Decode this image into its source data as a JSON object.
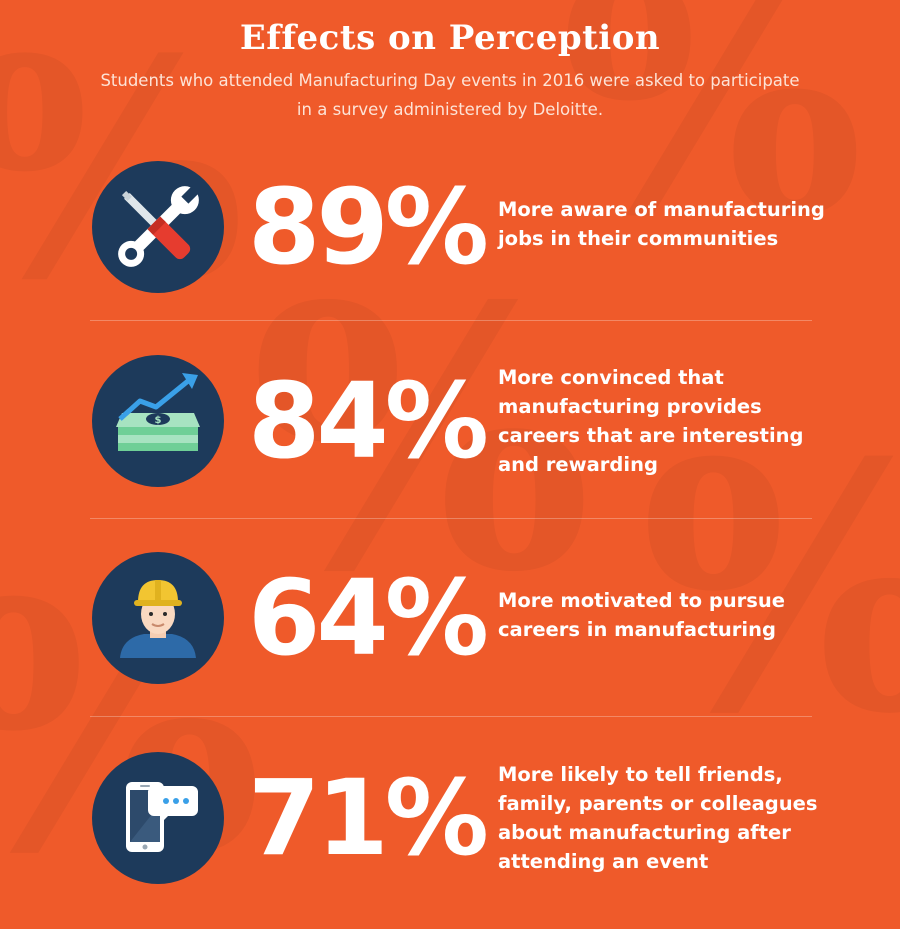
{
  "header": {
    "title": "Effects on Perception",
    "subtitle": "Students who attended Manufacturing Day events in 2016 were asked to participate in a survey administered by Deloitte."
  },
  "colors": {
    "background": "#ef5a2a",
    "icon_circle": "#1d3a5b",
    "text": "#ffffff"
  },
  "stats": [
    {
      "percent": "89%",
      "icon": "wrench-screwdriver-icon",
      "description": "More aware of manufacturing jobs in their communities"
    },
    {
      "percent": "84%",
      "icon": "money-growth-icon",
      "description": "More convinced that manufacturing provides careers that are interesting and rewarding"
    },
    {
      "percent": "64%",
      "icon": "hardhat-worker-icon",
      "description": "More motivated to pursue careers in manufacturing"
    },
    {
      "percent": "71%",
      "icon": "smartphone-chat-icon",
      "description": "More likely to tell friends, family, parents or colleagues about manufacturing after attending an event"
    }
  ]
}
